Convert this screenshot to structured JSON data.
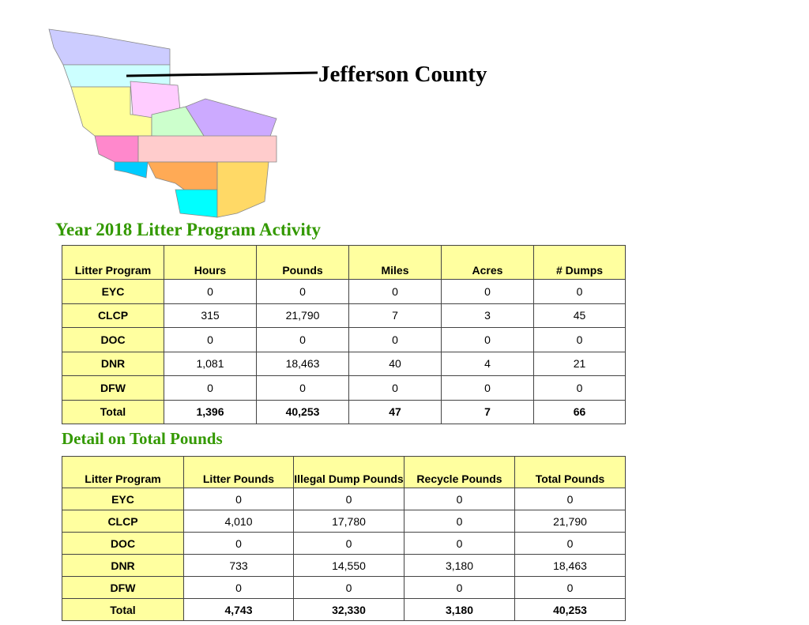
{
  "title": "Jefferson County",
  "table1": {
    "title": "Year 2018 Litter Program Activity",
    "header": [
      "Litter Program",
      "Hours",
      "Pounds",
      "Miles",
      "Acres",
      "# Dumps"
    ],
    "rows": [
      [
        "EYC",
        "0",
        "0",
        "0",
        "0",
        "0"
      ],
      [
        "CLCP",
        "315",
        "21,790",
        "7",
        "3",
        "45"
      ],
      [
        "DOC",
        "0",
        "0",
        "0",
        "0",
        "0"
      ],
      [
        "DNR",
        "1,081",
        "18,463",
        "40",
        "4",
        "21"
      ],
      [
        "DFW",
        "0",
        "0",
        "0",
        "0",
        "0"
      ],
      [
        "Total",
        "1,396",
        "40,253",
        "47",
        "7",
        "66"
      ]
    ]
  },
  "table2": {
    "title": "Detail on Total Pounds",
    "header": [
      "Litter Program",
      "Litter Pounds",
      "Illegal Dump Pounds",
      "Recycle Pounds",
      "Total Pounds"
    ],
    "rows": [
      [
        "EYC",
        "0",
        "0",
        "0",
        "0"
      ],
      [
        "CLCP",
        "4,010",
        "17,780",
        "0",
        "21,790"
      ],
      [
        "DOC",
        "0",
        "0",
        "0",
        "0"
      ],
      [
        "DNR",
        "733",
        "14,550",
        "3,180",
        "18,463"
      ],
      [
        "DFW",
        "0",
        "0",
        "0",
        "0"
      ],
      [
        "Total",
        "4,743",
        "32,330",
        "3,180",
        "40,253"
      ]
    ]
  }
}
